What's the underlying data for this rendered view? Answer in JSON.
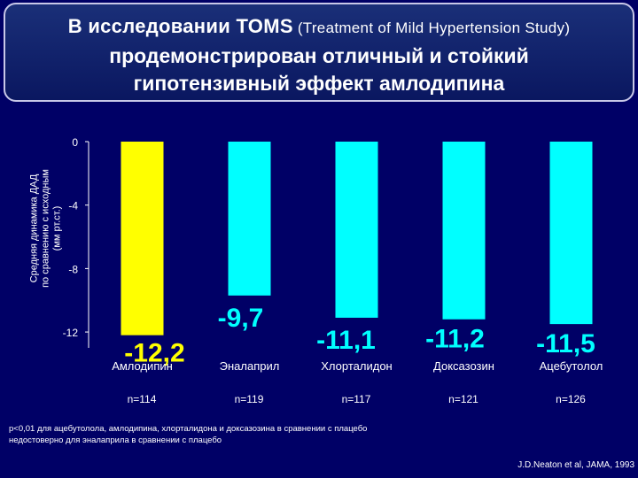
{
  "title": {
    "line1_bold": "В исследовании TOMS",
    "line1_sub": " (Treatment of Mild Hypertension Study)",
    "line2": "продемонстрирован отличный и стойкий",
    "line3": "гипотензивный эффект амлодипина"
  },
  "colors": {
    "amlodipine": "#ffff00",
    "others": "#00ffff",
    "background": "#000066"
  },
  "chart_data": {
    "type": "bar",
    "ylabel_lines": [
      "Средняя динамика ДАД",
      "по сравнению с исходным",
      "(мм рт.ст.)"
    ],
    "ylim": [
      -13,
      0
    ],
    "yticks": [
      0,
      -4,
      -8,
      -12
    ],
    "categories": [
      "Амлодипин",
      "Эналаприл",
      "Хлорталидон",
      "Доксазозин",
      "Ацебутолол"
    ],
    "values": [
      -12.2,
      -9.7,
      -11.1,
      -11.2,
      -11.5
    ],
    "value_labels": [
      "-12,2",
      "-9,7",
      "-11,1",
      "-11,2",
      "-11,5"
    ],
    "n": [
      "n=114",
      "n=119",
      "n=117",
      "n=121",
      "n=126"
    ],
    "grid": false
  },
  "footnote": {
    "line1": "p<0,01 для ацебутолола, амлодипина, хлорталидона и доксазозина в сравнении с плацебо",
    "line2": "недостоверно для эналаприла в сравнении с плацебо"
  },
  "source": "J.D.Neaton et al, JAMA, 1993"
}
